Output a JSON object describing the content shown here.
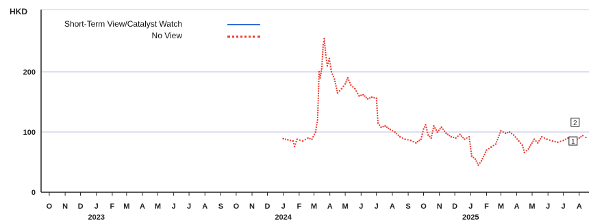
{
  "unit_label": "HKD",
  "colors": {
    "short_term": "#2f6fd6",
    "no_view": "#ee3b30",
    "grid": "#c9c9e6",
    "axis": "#222222"
  },
  "chart_data": {
    "type": "line",
    "ylabel": "HKD",
    "ylim": [
      0,
      270
    ],
    "y_ticks": [
      0,
      100,
      200
    ],
    "grid": "horizontal",
    "legend_position": "top-left",
    "x_range": [
      "2022-09-15",
      "2025-08-20"
    ],
    "month_ticks": [
      {
        "date": "2022-10-01",
        "label": "O"
      },
      {
        "date": "2022-11-01",
        "label": "N"
      },
      {
        "date": "2022-12-01",
        "label": "D"
      },
      {
        "date": "2023-01-01",
        "label": "J"
      },
      {
        "date": "2023-02-01",
        "label": "F"
      },
      {
        "date": "2023-03-01",
        "label": "M"
      },
      {
        "date": "2023-04-01",
        "label": "A"
      },
      {
        "date": "2023-05-01",
        "label": "M"
      },
      {
        "date": "2023-06-01",
        "label": "J"
      },
      {
        "date": "2023-07-01",
        "label": "J"
      },
      {
        "date": "2023-08-01",
        "label": "A"
      },
      {
        "date": "2023-09-01",
        "label": "S"
      },
      {
        "date": "2023-10-01",
        "label": "O"
      },
      {
        "date": "2023-11-01",
        "label": "N"
      },
      {
        "date": "2023-12-01",
        "label": "D"
      },
      {
        "date": "2024-01-01",
        "label": "J"
      },
      {
        "date": "2024-02-01",
        "label": "F"
      },
      {
        "date": "2024-03-01",
        "label": "M"
      },
      {
        "date": "2024-04-01",
        "label": "A"
      },
      {
        "date": "2024-05-01",
        "label": "M"
      },
      {
        "date": "2024-06-01",
        "label": "J"
      },
      {
        "date": "2024-07-01",
        "label": "J"
      },
      {
        "date": "2024-08-01",
        "label": "A"
      },
      {
        "date": "2024-09-01",
        "label": "S"
      },
      {
        "date": "2024-10-01",
        "label": "O"
      },
      {
        "date": "2024-11-01",
        "label": "N"
      },
      {
        "date": "2024-12-01",
        "label": "D"
      },
      {
        "date": "2025-01-01",
        "label": "J"
      },
      {
        "date": "2025-02-01",
        "label": "F"
      },
      {
        "date": "2025-03-01",
        "label": "M"
      },
      {
        "date": "2025-04-01",
        "label": "A"
      },
      {
        "date": "2025-05-01",
        "label": "M"
      },
      {
        "date": "2025-06-01",
        "label": "J"
      },
      {
        "date": "2025-07-01",
        "label": "J"
      },
      {
        "date": "2025-08-01",
        "label": "A"
      }
    ],
    "year_labels": [
      {
        "date": "2023-01-01",
        "label": "2023"
      },
      {
        "date": "2024-01-01",
        "label": "2024"
      },
      {
        "date": "2025-01-01",
        "label": "2025"
      }
    ],
    "series": [
      {
        "name": "Short-Term View/Catalyst Watch",
        "style": "solid",
        "points": [
          [
            "2025-07-20",
            83
          ],
          [
            "2025-07-24",
            84
          ]
        ]
      },
      {
        "name": "No View",
        "style": "dotted",
        "points": [
          [
            "2024-01-01",
            89
          ],
          [
            "2024-01-10",
            87
          ],
          [
            "2024-01-20",
            85
          ],
          [
            "2024-01-23",
            76
          ],
          [
            "2024-01-28",
            88
          ],
          [
            "2024-02-08",
            85
          ],
          [
            "2024-02-18",
            90
          ],
          [
            "2024-02-26",
            88
          ],
          [
            "2024-03-04",
            100
          ],
          [
            "2024-03-08",
            120
          ],
          [
            "2024-03-11",
            200
          ],
          [
            "2024-03-13",
            190
          ],
          [
            "2024-03-16",
            205
          ],
          [
            "2024-03-19",
            245
          ],
          [
            "2024-03-21",
            255
          ],
          [
            "2024-03-24",
            228
          ],
          [
            "2024-03-27",
            210
          ],
          [
            "2024-03-31",
            222
          ],
          [
            "2024-04-04",
            200
          ],
          [
            "2024-04-10",
            188
          ],
          [
            "2024-04-16",
            165
          ],
          [
            "2024-04-24",
            172
          ],
          [
            "2024-05-01",
            180
          ],
          [
            "2024-05-06",
            190
          ],
          [
            "2024-05-12",
            178
          ],
          [
            "2024-05-20",
            172
          ],
          [
            "2024-05-28",
            160
          ],
          [
            "2024-06-05",
            162
          ],
          [
            "2024-06-14",
            155
          ],
          [
            "2024-06-22",
            158
          ],
          [
            "2024-07-01",
            156
          ],
          [
            "2024-07-04",
            115
          ],
          [
            "2024-07-10",
            108
          ],
          [
            "2024-07-18",
            110
          ],
          [
            "2024-07-28",
            104
          ],
          [
            "2024-08-06",
            100
          ],
          [
            "2024-08-16",
            92
          ],
          [
            "2024-08-26",
            88
          ],
          [
            "2024-09-06",
            86
          ],
          [
            "2024-09-16",
            82
          ],
          [
            "2024-09-26",
            88
          ],
          [
            "2024-10-01",
            105
          ],
          [
            "2024-10-05",
            112
          ],
          [
            "2024-10-10",
            95
          ],
          [
            "2024-10-16",
            90
          ],
          [
            "2024-10-21",
            110
          ],
          [
            "2024-10-28",
            100
          ],
          [
            "2024-11-05",
            108
          ],
          [
            "2024-11-14",
            98
          ],
          [
            "2024-11-24",
            92
          ],
          [
            "2024-12-03",
            90
          ],
          [
            "2024-12-11",
            96
          ],
          [
            "2024-12-20",
            88
          ],
          [
            "2024-12-29",
            92
          ],
          [
            "2025-01-03",
            60
          ],
          [
            "2025-01-10",
            55
          ],
          [
            "2025-01-16",
            45
          ],
          [
            "2025-01-22",
            52
          ],
          [
            "2025-02-01",
            70
          ],
          [
            "2025-02-10",
            75
          ],
          [
            "2025-02-19",
            80
          ],
          [
            "2025-03-01",
            102
          ],
          [
            "2025-03-10",
            98
          ],
          [
            "2025-03-18",
            100
          ],
          [
            "2025-03-26",
            95
          ],
          [
            "2025-04-05",
            85
          ],
          [
            "2025-04-12",
            78
          ],
          [
            "2025-04-16",
            66
          ],
          [
            "2025-04-24",
            72
          ],
          [
            "2025-05-05",
            88
          ],
          [
            "2025-05-12",
            82
          ],
          [
            "2025-05-20",
            92
          ],
          [
            "2025-05-30",
            88
          ],
          [
            "2025-06-10",
            85
          ],
          [
            "2025-06-20",
            83
          ],
          [
            "2025-07-01",
            86
          ],
          [
            "2025-07-10",
            90
          ],
          [
            "2025-07-20",
            84
          ],
          [
            "2025-08-01",
            90
          ],
          [
            "2025-08-08",
            94
          ],
          [
            "2025-08-14",
            91
          ]
        ]
      }
    ],
    "annotations": [
      {
        "label": "1",
        "date": "2025-07-20",
        "value": 84
      },
      {
        "label": "2",
        "date": "2025-07-24",
        "value": 115
      }
    ]
  }
}
